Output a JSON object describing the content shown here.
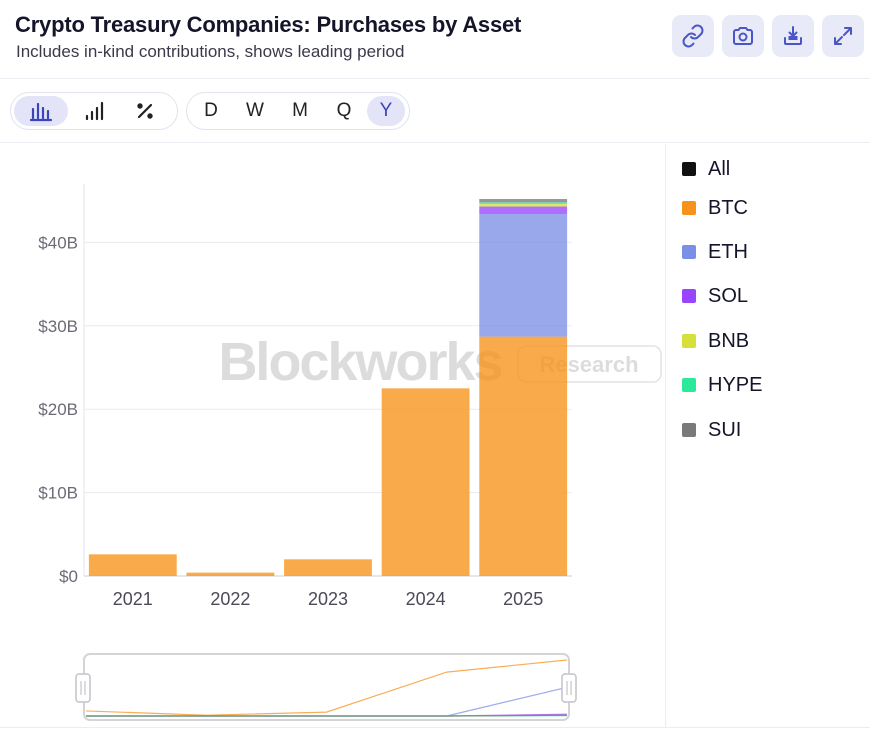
{
  "header": {
    "title": "Crypto Treasury Companies: Purchases by Asset",
    "subtitle": "Includes in-kind contributions, shows leading period",
    "actions": [
      {
        "name": "link-icon"
      },
      {
        "name": "camera-icon"
      },
      {
        "name": "download-icon"
      },
      {
        "name": "expand-icon"
      }
    ]
  },
  "toolbar": {
    "chart_types": [
      {
        "name": "bar-chart-icon",
        "active": true
      },
      {
        "name": "signal-bars-icon",
        "active": false
      },
      {
        "name": "percent-icon",
        "active": false
      }
    ],
    "periods": [
      {
        "label": "D",
        "active": false
      },
      {
        "label": "W",
        "active": false
      },
      {
        "label": "M",
        "active": false
      },
      {
        "label": "Q",
        "active": false
      },
      {
        "label": "Y",
        "active": true
      }
    ]
  },
  "watermark": {
    "brand": "Blockworks",
    "tag": "Research"
  },
  "legend": [
    {
      "label": "All",
      "color": "#111111"
    },
    {
      "label": "BTC",
      "color": "#f7931a"
    },
    {
      "label": "ETH",
      "color": "#7b8fe6"
    },
    {
      "label": "SOL",
      "color": "#9945ff"
    },
    {
      "label": "BNB",
      "color": "#d6e03a"
    },
    {
      "label": "HYPE",
      "color": "#2ee89a"
    },
    {
      "label": "SUI",
      "color": "#7a7a7a"
    }
  ],
  "chart_data": {
    "type": "bar",
    "stacked": true,
    "categories": [
      "2021",
      "2022",
      "2023",
      "2024",
      "2025"
    ],
    "y_ticks": [
      "$0",
      "$10B",
      "$20B",
      "$30B",
      "$40B"
    ],
    "ylim": [
      0,
      47
    ],
    "units": "billions USD",
    "series": [
      {
        "name": "BTC",
        "color": "#f7931a",
        "values": [
          2.6,
          0.4,
          2.0,
          22.5,
          28.7
        ]
      },
      {
        "name": "ETH",
        "color": "#7b8fe6",
        "values": [
          0,
          0,
          0,
          0,
          14.7
        ]
      },
      {
        "name": "SOL",
        "color": "#9945ff",
        "values": [
          0,
          0,
          0,
          0,
          0.9
        ]
      },
      {
        "name": "BNB",
        "color": "#d6e03a",
        "values": [
          0,
          0,
          0,
          0,
          0.3
        ]
      },
      {
        "name": "HYPE",
        "color": "#2ee89a",
        "values": [
          0,
          0,
          0,
          0,
          0.2
        ]
      },
      {
        "name": "SUI",
        "color": "#7a7a7a",
        "values": [
          0,
          0,
          0,
          0,
          0.4
        ]
      }
    ],
    "grid": true,
    "legend_position": "right"
  }
}
